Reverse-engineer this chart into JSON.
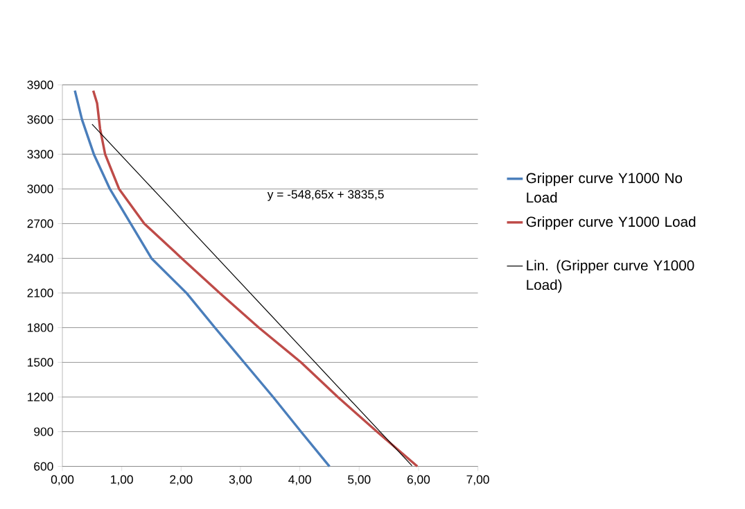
{
  "chart_data": {
    "type": "line",
    "xlim": [
      0,
      7
    ],
    "xticks": [
      {
        "value": 0,
        "label": "0,00"
      },
      {
        "value": 1,
        "label": "1,00"
      },
      {
        "value": 2,
        "label": "2,00"
      },
      {
        "value": 3,
        "label": "3,00"
      },
      {
        "value": 4,
        "label": "4,00"
      },
      {
        "value": 5,
        "label": "5,00"
      },
      {
        "value": 6,
        "label": "6,00"
      },
      {
        "value": 7,
        "label": "7,00"
      }
    ],
    "ylim": [
      600,
      3900
    ],
    "yticks": [
      600,
      900,
      1200,
      1500,
      1800,
      2100,
      2400,
      2700,
      3000,
      3300,
      3600,
      3900
    ],
    "grid": "y",
    "legend": "right",
    "marker": "none",
    "series": [
      {
        "name": "Gripper curve Y1000 No Load",
        "color": "#4a7ebb",
        "x": [
          0.21,
          0.33,
          0.53,
          0.8,
          1.15,
          1.5,
          2.09,
          2.57,
          3.06,
          3.55,
          4.02,
          4.5
        ],
        "values": [
          3850,
          3600,
          3300,
          3000,
          2700,
          2400,
          2100,
          1800,
          1500,
          1200,
          900,
          600
        ]
      },
      {
        "name": "Gripper curve Y1000 Load",
        "color": "#be4b48",
        "x": [
          0.52,
          0.585,
          0.635,
          0.72,
          0.955,
          1.38,
          2.01,
          2.65,
          3.31,
          4.02,
          4.64,
          5.3,
          5.98
        ],
        "values": [
          3850,
          3740,
          3520,
          3300,
          3000,
          2700,
          2400,
          2100,
          1800,
          1500,
          1200,
          900,
          600
        ]
      },
      {
        "name": "Lin. (Gripper curve Y1000 Load)",
        "type": "line",
        "color": "#000000",
        "x": [
          0.5,
          5.89
        ],
        "values": [
          3560,
          605
        ]
      }
    ],
    "annotations": [
      "y = -548,65x + 3835,5"
    ]
  }
}
